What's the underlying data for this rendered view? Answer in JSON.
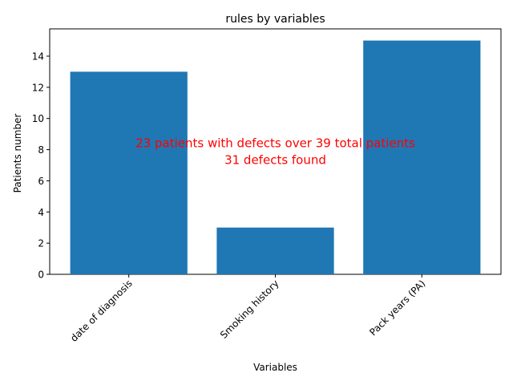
{
  "chart_data": {
    "type": "bar",
    "title": "rules by variables",
    "xlabel": "Variables",
    "ylabel": "Patients number",
    "categories": [
      "date of diagnosis",
      "Smoking history",
      "Pack years (PA)"
    ],
    "values": [
      13,
      3,
      15
    ],
    "ylim": [
      0,
      15.75
    ],
    "yticks": [
      0,
      2,
      4,
      6,
      8,
      10,
      12,
      14
    ],
    "grid": false,
    "bar_color": "#1f77b4",
    "annotation": {
      "lines": [
        "23 patients with defects over 39 total patients",
        "31 defects found"
      ],
      "color": "#ff0000"
    }
  }
}
